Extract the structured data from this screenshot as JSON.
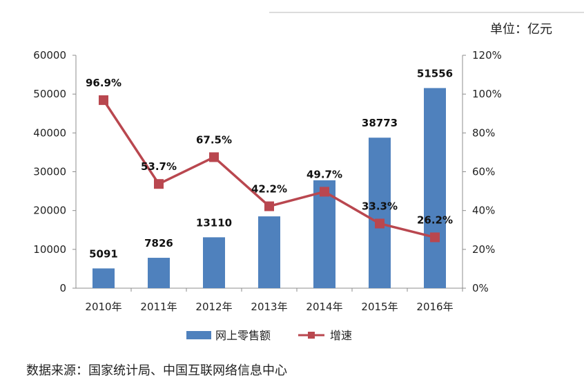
{
  "chart_data": {
    "type": "bar",
    "unit_label": "单位：亿元",
    "categories": [
      "2010年",
      "2011年",
      "2012年",
      "2013年",
      "2014年",
      "2015年",
      "2016年"
    ],
    "series": [
      {
        "name": "网上零售额",
        "type": "bar",
        "axis": "left",
        "color": "#4f81bd",
        "values": [
          5091,
          7826,
          13110,
          18500,
          27800,
          38773,
          51556
        ],
        "labels": [
          "5091",
          "7826",
          "13110",
          "",
          "",
          "38773",
          "51556"
        ]
      },
      {
        "name": "增速",
        "type": "line",
        "axis": "right",
        "color": "#b9474f",
        "values": [
          96.9,
          53.7,
          67.5,
          42.2,
          49.7,
          33.3,
          26.2
        ],
        "labels": [
          "96.9%",
          "53.7%",
          "67.5%",
          "42.2%",
          "49.7%",
          "33.3%",
          "26.2%"
        ]
      }
    ],
    "y_left": {
      "range": [
        0,
        60000
      ],
      "ticks": [
        "0",
        "10000",
        "20000",
        "30000",
        "40000",
        "50000",
        "60000"
      ]
    },
    "y_right": {
      "range": [
        0,
        120
      ],
      "ticks": [
        "0%",
        "20%",
        "40%",
        "60%",
        "80%",
        "100%",
        "120%"
      ]
    },
    "grid": false,
    "legend_position": "bottom"
  },
  "source_text": "数据来源：国家统计局、中国互联网络信息中心"
}
